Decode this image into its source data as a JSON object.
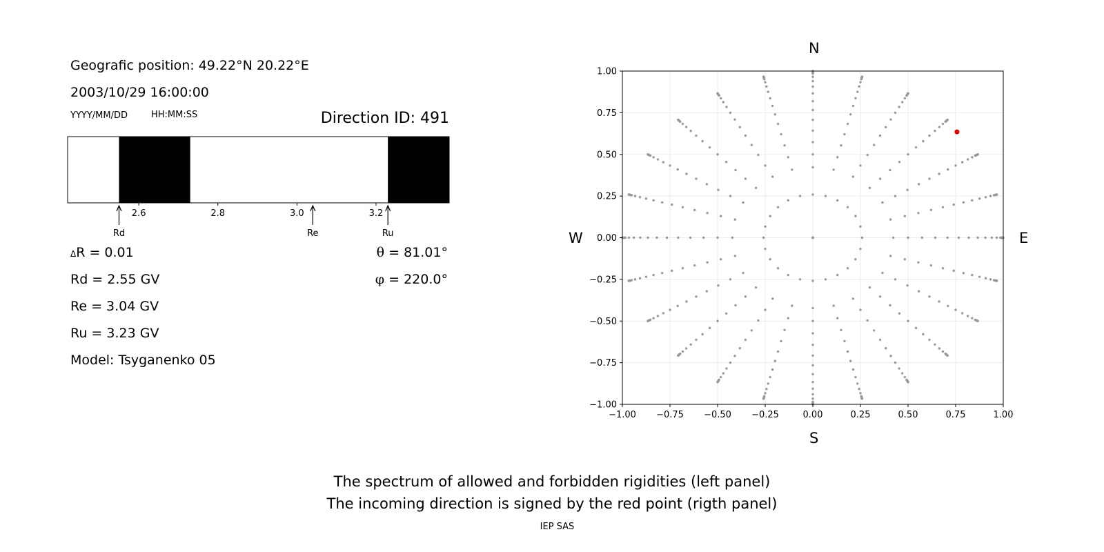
{
  "info": {
    "position": "Geografic position: 49.22°N 20.22°E",
    "datetime": "2003/10/29 16:00:00",
    "date_format": "YYYY/MM/DD",
    "time_format": "HH:MM:SS",
    "direction_id": "Direction ID: 491",
    "delta_r_symbol": "Δ",
    "delta_r": "R = 0.01",
    "rd": "Rd = 2.55 GV",
    "re": "Re = 3.04 GV",
    "ru": "Ru = 3.23 GV",
    "model": "Model: Tsyganenko 05",
    "theta_symbol": "θ",
    "theta": " = 81.01°",
    "phi_symbol": "φ",
    "phi": " = 220.0°"
  },
  "compass": {
    "north": "N",
    "south": "S",
    "west": "W",
    "east": "E"
  },
  "caption": {
    "line1": "The spectrum of allowed and forbidden rigidities (left panel)",
    "line2": "The incoming direction is signed by the red point (rigth panel)",
    "credit": "IEP SAS"
  },
  "chart_data": [
    {
      "type": "bar",
      "description": "rigidity spectrum band",
      "xlim": [
        2.42,
        3.385
      ],
      "xticks": [
        "2.6",
        "2.8",
        "3.0",
        "3.2"
      ],
      "xtick_values": [
        2.6,
        2.8,
        3.0,
        3.2
      ],
      "forbidden_bands": [
        [
          2.55,
          2.73
        ],
        [
          3.23,
          3.385
        ]
      ],
      "forbidden_color": "#000000",
      "allowed_color": "#ffffff",
      "markers": [
        {
          "label": "Rd",
          "value": 2.55
        },
        {
          "label": "Re",
          "value": 3.04
        },
        {
          "label": "Ru",
          "value": 3.23
        }
      ]
    },
    {
      "type": "scatter",
      "xlim": [
        -1.0,
        1.0
      ],
      "ylim": [
        -1.0,
        1.0
      ],
      "xticks": [
        "−1.00",
        "−0.75",
        "−0.50",
        "−0.25",
        "0.00",
        "0.25",
        "0.50",
        "0.75",
        "1.00"
      ],
      "yticks": [
        "1.00",
        "0.75",
        "0.50",
        "0.25",
        "0.00",
        "−0.25",
        "−0.50",
        "−0.75",
        "−1.00"
      ],
      "tick_values": [
        -1.0,
        -0.75,
        -0.5,
        -0.25,
        0.0,
        0.25,
        0.5,
        0.75,
        1.0
      ],
      "grid": true,
      "grid_color": "#e6e6e6",
      "point_color": "#999999",
      "highlight_color": "#e00000",
      "zeniths_deg": [
        0,
        15,
        25,
        30,
        35,
        40,
        45,
        50,
        55,
        60,
        65,
        70,
        75,
        80,
        81,
        82,
        83,
        84,
        85,
        86,
        87,
        88,
        89,
        90
      ],
      "azimuths_deg": [
        0,
        15,
        30,
        45,
        60,
        75,
        90,
        105,
        120,
        135,
        150,
        165,
        180,
        195,
        210,
        225,
        240,
        255,
        270,
        285,
        300,
        315,
        330,
        345
      ],
      "highlight": {
        "x": 0.757,
        "y": 0.635
      }
    }
  ]
}
